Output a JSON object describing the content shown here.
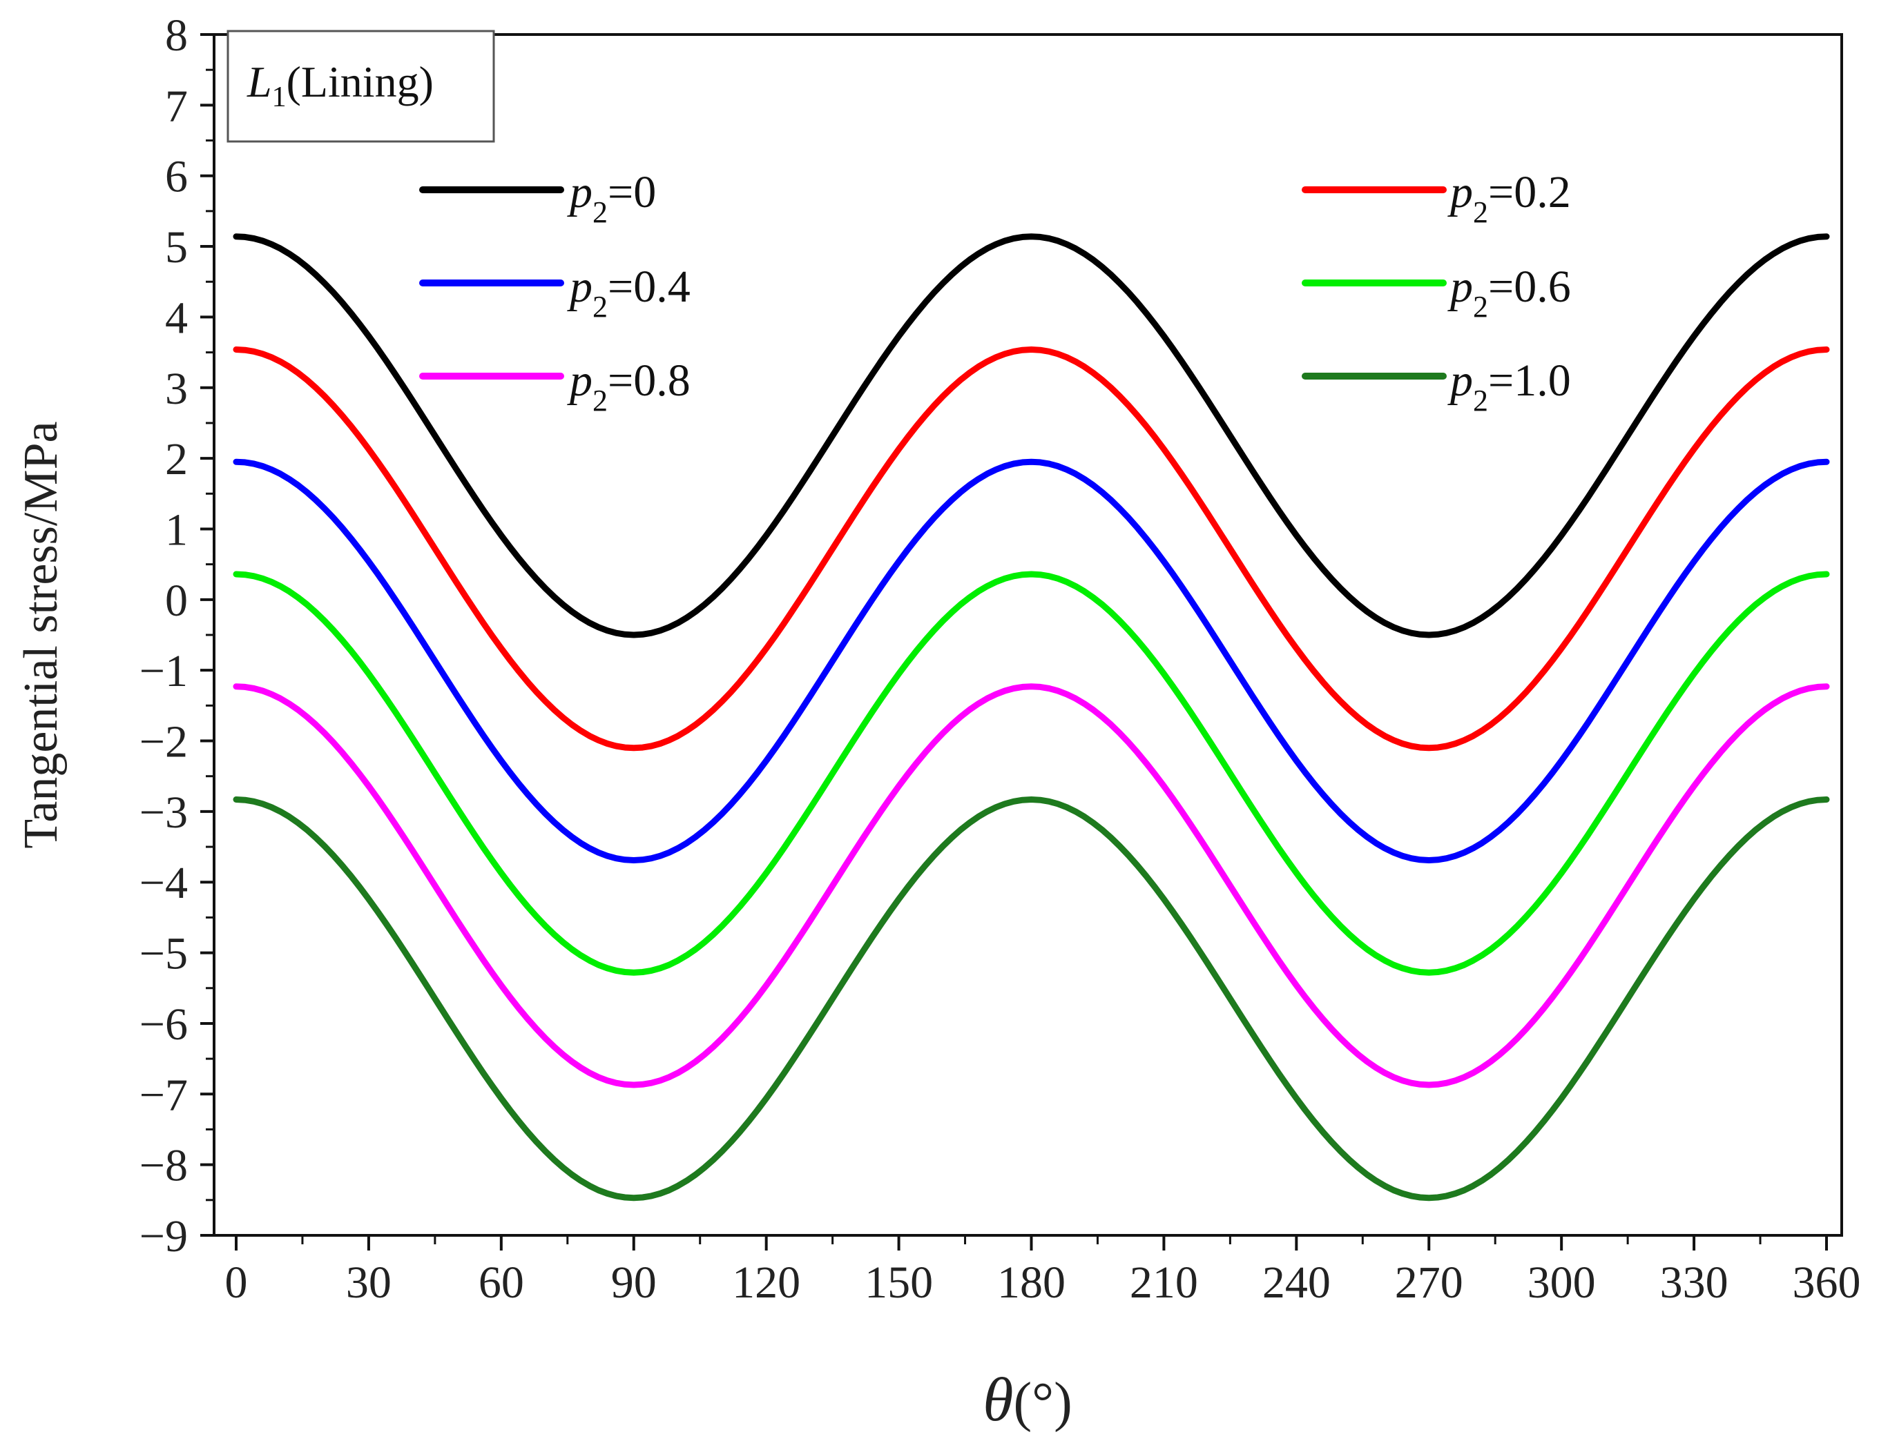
{
  "chart_data": {
    "type": "line",
    "annotation": {
      "symbol": "L",
      "subscript": "1",
      "text": "(Lining)"
    },
    "xlabel": {
      "symbol": "θ",
      "unit": "(°)"
    },
    "ylabel": "Tangential stress/MPa",
    "xlim": [
      0,
      360
    ],
    "ylim": [
      -9,
      8
    ],
    "xticks": [
      0,
      30,
      60,
      90,
      120,
      150,
      180,
      210,
      240,
      270,
      300,
      330,
      360
    ],
    "yticks": [
      8,
      7,
      6,
      5,
      4,
      3,
      2,
      1,
      0,
      -1,
      -2,
      -3,
      -4,
      -5,
      -6,
      -7,
      -8,
      -9
    ],
    "x": [
      0,
      15,
      30,
      45,
      60,
      75,
      90,
      105,
      120,
      135,
      150,
      165,
      180,
      195,
      210,
      225,
      240,
      255,
      270,
      285,
      300,
      315,
      330,
      345,
      360
    ],
    "series": [
      {
        "name": "p2=0",
        "label_sym": "p",
        "label_sub": "2",
        "label_val": "=0",
        "color": "#000000",
        "values": [
          5.14,
          4.76,
          3.73,
          2.32,
          0.91,
          -0.12,
          -0.5,
          -0.12,
          0.91,
          2.32,
          3.73,
          4.76,
          5.14,
          4.76,
          3.73,
          2.32,
          0.91,
          -0.12,
          -0.5,
          -0.12,
          0.91,
          2.32,
          3.73,
          4.76,
          5.14
        ]
      },
      {
        "name": "p2=0.2",
        "label_sym": "p",
        "label_sub": "2",
        "label_val": "=0.2",
        "color": "#ff0000",
        "values": [
          3.54,
          3.16,
          2.13,
          0.72,
          -0.69,
          -1.72,
          -2.1,
          -1.72,
          -0.69,
          0.72,
          2.13,
          3.16,
          3.54,
          3.16,
          2.13,
          0.72,
          -0.69,
          -1.72,
          -2.1,
          -1.72,
          -0.69,
          0.72,
          2.13,
          3.16,
          3.54
        ]
      },
      {
        "name": "p2=0.4",
        "label_sym": "p",
        "label_sub": "2",
        "label_val": "=0.4",
        "color": "#0000ff",
        "values": [
          1.95,
          1.57,
          0.54,
          -0.87,
          -2.28,
          -3.31,
          -3.69,
          -3.31,
          -2.28,
          -0.87,
          0.54,
          1.57,
          1.95,
          1.57,
          0.54,
          -0.87,
          -2.28,
          -3.31,
          -3.69,
          -3.31,
          -2.28,
          -0.87,
          0.54,
          1.57,
          1.95
        ]
      },
      {
        "name": "p2=0.6",
        "label_sym": "p",
        "label_sub": "2",
        "label_val": "=0.6",
        "color": "#00ee00",
        "values": [
          0.36,
          -0.02,
          -1.05,
          -2.46,
          -3.87,
          -4.9,
          -5.28,
          -4.9,
          -3.87,
          -2.46,
          -1.05,
          -0.02,
          0.36,
          -0.02,
          -1.05,
          -2.46,
          -3.87,
          -4.9,
          -5.28,
          -4.9,
          -3.87,
          -2.46,
          -1.05,
          -0.02,
          0.36
        ]
      },
      {
        "name": "p2=0.8",
        "label_sym": "p",
        "label_sub": "2",
        "label_val": "=0.8",
        "color": "#ff00ff",
        "values": [
          -1.23,
          -1.61,
          -2.64,
          -4.05,
          -5.46,
          -6.49,
          -6.87,
          -6.49,
          -5.46,
          -4.05,
          -2.64,
          -1.61,
          -1.23,
          -1.61,
          -2.64,
          -4.05,
          -5.46,
          -6.49,
          -6.87,
          -6.49,
          -5.46,
          -4.05,
          -2.64,
          -1.61,
          -1.23
        ]
      },
      {
        "name": "p2=1.0",
        "label_sym": "p",
        "label_sub": "2",
        "label_val": "=1.0",
        "color": "#1e7a1e",
        "values": [
          -2.83,
          -3.21,
          -4.24,
          -5.65,
          -7.06,
          -8.09,
          -8.47,
          -8.09,
          -7.06,
          -5.65,
          -4.24,
          -3.21,
          -2.83,
          -3.21,
          -4.24,
          -5.65,
          -7.06,
          -8.09,
          -8.47,
          -8.09,
          -7.06,
          -5.65,
          -4.24,
          -3.21,
          -2.83
        ]
      }
    ],
    "legend_position": "top, two columns",
    "grid": false
  }
}
